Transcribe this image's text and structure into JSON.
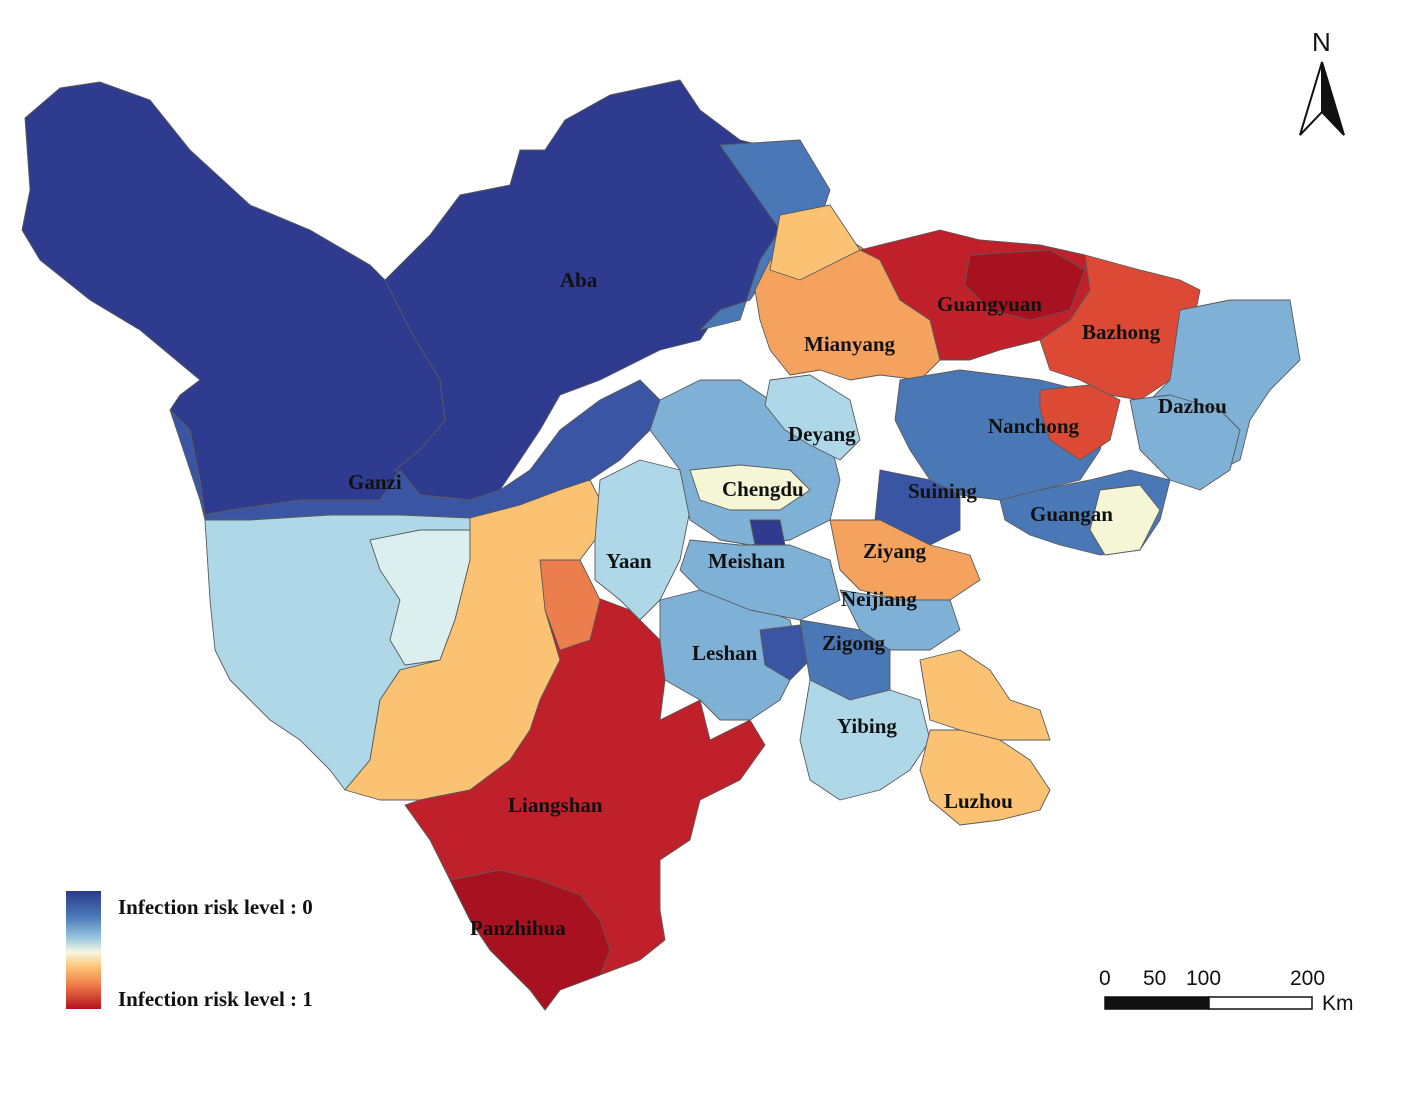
{
  "legend": {
    "low_label": "Infection risk level : 0",
    "high_label": "Infection risk level : 1",
    "gradient_colors": [
      "#2c3a8c",
      "#4a7ab8",
      "#9cc8e0",
      "#f7f7df",
      "#fbc677",
      "#ef7a48",
      "#b3121f"
    ]
  },
  "north_arrow": {
    "label": "N"
  },
  "scale_bar": {
    "ticks": [
      "0",
      "50",
      "100",
      "200"
    ],
    "unit": "Km"
  },
  "cities": {
    "aba": "Aba",
    "ganzi": "Ganzi",
    "liangshan": "Liangshan",
    "panzhihua": "Panzhihua",
    "yaan": "Yaan",
    "meishan": "Meishan",
    "leshan": "Leshan",
    "chengdu": "Chengdu",
    "deyang": "Deyang",
    "mianyang": "Mianyang",
    "guangyuan": "Guangyuan",
    "bazhong": "Bazhong",
    "dazhou": "Dazhou",
    "nanchong": "Nanchong",
    "suining": "Suining",
    "guangan": "Guangan",
    "ziyang": "Ziyang",
    "neijiang": "Neijiang",
    "zigong": "Zigong",
    "yibing": "Yibing",
    "luzhou": "Luzhou"
  },
  "risk_colors": {
    "r0": "#2f3b8f",
    "r1": "#3a55a3",
    "r2": "#4a78b6",
    "r3": "#7fb0d6",
    "r4": "#aed7e8",
    "r5": "#dcefef",
    "r6": "#f4f6d6",
    "r7": "#fde3a0",
    "r8": "#fbc273",
    "r9": "#f5a25e",
    "r10": "#ec7e4e",
    "r11": "#dc4a35",
    "r12": "#c0202a",
    "r13": "#a8111f"
  },
  "regions": [
    {
      "name": "aba-region",
      "risk": "r0"
    },
    {
      "name": "ganzi-north-region",
      "risk": "r0"
    },
    {
      "name": "ganzi-south-region",
      "risk": "r4"
    },
    {
      "name": "liangshan-region",
      "risk": "r12"
    },
    {
      "name": "panzhihua-region",
      "risk": "r13"
    },
    {
      "name": "yaan-region",
      "risk": "r4"
    },
    {
      "name": "mianyang-region",
      "risk": "r9"
    },
    {
      "name": "guangyuan-region",
      "risk": "r12"
    },
    {
      "name": "bazhong-region",
      "risk": "r11"
    },
    {
      "name": "dazhou-region",
      "risk": "r3"
    },
    {
      "name": "nanchong-region",
      "risk": "r2"
    },
    {
      "name": "chengdu-region",
      "risk": "r3"
    },
    {
      "name": "leshan-region",
      "risk": "r3"
    },
    {
      "name": "luzhou-region",
      "risk": "r8"
    }
  ]
}
